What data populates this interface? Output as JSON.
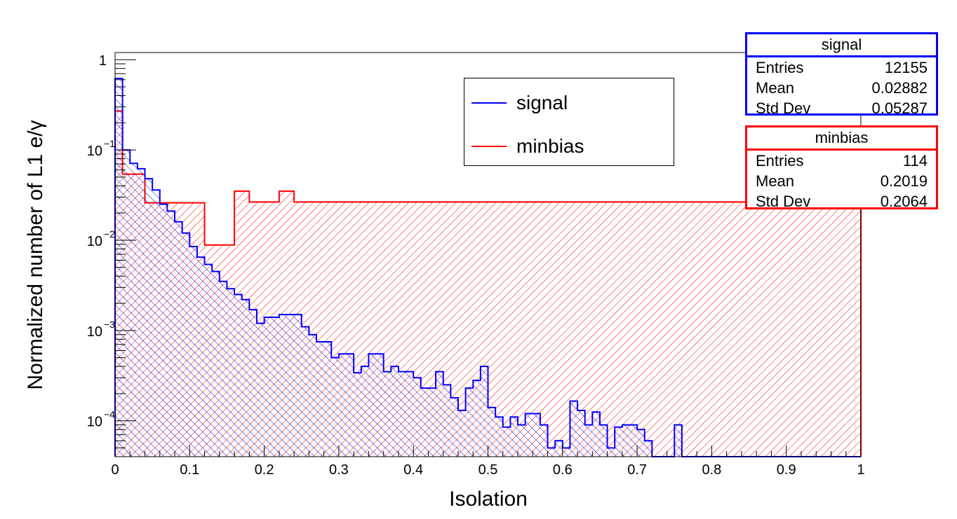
{
  "chart_data": {
    "type": "histogram",
    "title": "",
    "xlabel": "Isolation",
    "ylabel": "Normalized number of L1 e/γ",
    "x_range": [
      0,
      1
    ],
    "y_range": [
      4e-05,
      1.2
    ],
    "y_scale": "log",
    "bin_width": 0.01,
    "grid": false,
    "x_ticks": [
      "0",
      "0.1",
      "0.2",
      "0.3",
      "0.4",
      "0.5",
      "0.6",
      "0.7",
      "0.8",
      "0.9",
      "1"
    ],
    "y_ticks": [
      {
        "base": "10",
        "exp": "−4",
        "value": 0.0001
      },
      {
        "base": "10",
        "exp": "−3",
        "value": 0.001
      },
      {
        "base": "10",
        "exp": "−2",
        "value": 0.01
      },
      {
        "base": "10",
        "exp": "−1",
        "value": 0.1
      },
      {
        "base": "1",
        "exp": "",
        "value": 1
      }
    ],
    "legend_position": "top-right",
    "series": [
      {
        "name": "signal",
        "color": "#0000ff",
        "hatch": "backslash",
        "bins": [
          [
            0,
            0.62
          ],
          [
            0.01,
            0.1
          ],
          [
            0.02,
            0.071
          ],
          [
            0.03,
            0.062
          ],
          [
            0.04,
            0.048
          ],
          [
            0.05,
            0.036
          ],
          [
            0.06,
            0.025
          ],
          [
            0.07,
            0.021
          ],
          [
            0.08,
            0.016
          ],
          [
            0.09,
            0.012
          ],
          [
            0.1,
            0.0085
          ],
          [
            0.11,
            0.0065
          ],
          [
            0.12,
            0.0054
          ],
          [
            0.13,
            0.0045
          ],
          [
            0.14,
            0.0035
          ],
          [
            0.15,
            0.0029
          ],
          [
            0.16,
            0.0025
          ],
          [
            0.17,
            0.0022
          ],
          [
            0.18,
            0.0017
          ],
          [
            0.19,
            0.0012
          ],
          [
            0.2,
            0.0014
          ],
          [
            0.21,
            0.0014
          ],
          [
            0.22,
            0.0015
          ],
          [
            0.23,
            0.0015
          ],
          [
            0.24,
            0.0015
          ],
          [
            0.25,
            0.0011
          ],
          [
            0.26,
            0.0009
          ],
          [
            0.27,
            0.00075
          ],
          [
            0.28,
            0.00075
          ],
          [
            0.29,
            0.0005
          ],
          [
            0.3,
            0.00055
          ],
          [
            0.31,
            0.00055
          ],
          [
            0.32,
            0.00034
          ],
          [
            0.33,
            0.0004
          ],
          [
            0.34,
            0.00055
          ],
          [
            0.35,
            0.00055
          ],
          [
            0.36,
            0.00035
          ],
          [
            0.37,
            0.0004
          ],
          [
            0.38,
            0.00035
          ],
          [
            0.39,
            0.00035
          ],
          [
            0.4,
            0.0003
          ],
          [
            0.41,
            0.00023
          ],
          [
            0.42,
            0.00023
          ],
          [
            0.43,
            0.00035
          ],
          [
            0.44,
            0.00025
          ],
          [
            0.45,
            0.00018
          ],
          [
            0.46,
            0.00013
          ],
          [
            0.47,
            0.00023
          ],
          [
            0.48,
            0.00028
          ],
          [
            0.49,
            0.0004
          ],
          [
            0.5,
            0.00014
          ],
          [
            0.51,
            0.00011
          ],
          [
            0.52,
            8.5e-05
          ],
          [
            0.53,
            0.00011
          ],
          [
            0.54,
            9e-05
          ],
          [
            0.55,
            0.00012
          ],
          [
            0.56,
            0.00012
          ],
          [
            0.57,
            9e-05
          ],
          [
            0.58,
            5e-05
          ],
          [
            0.59,
            6e-05
          ],
          [
            0.6,
            5e-05
          ],
          [
            0.61,
            0.000165
          ],
          [
            0.62,
            0.00013
          ],
          [
            0.63,
            9e-05
          ],
          [
            0.64,
            0.000125
          ],
          [
            0.65,
            9e-05
          ],
          [
            0.66,
            5e-05
          ],
          [
            0.67,
            8.5e-05
          ],
          [
            0.68,
            9e-05
          ],
          [
            0.69,
            9e-05
          ],
          [
            0.7,
            8e-05
          ],
          [
            0.71,
            6e-05
          ],
          [
            0.72,
            4e-05
          ],
          [
            0.73,
            4e-05
          ],
          [
            0.74,
            4e-05
          ],
          [
            0.75,
            9e-05
          ],
          [
            0.76,
            4e-05
          ],
          [
            0.77,
            4e-05
          ],
          [
            0.78,
            4e-05
          ],
          [
            0.79,
            4e-05
          ],
          [
            0.8,
            4e-05
          ],
          [
            0.81,
            4e-05
          ],
          [
            0.82,
            4e-05
          ],
          [
            0.83,
            4e-05
          ],
          [
            0.84,
            4e-05
          ],
          [
            0.85,
            4e-05
          ],
          [
            0.86,
            4e-05
          ],
          [
            0.87,
            4e-05
          ],
          [
            0.88,
            4e-05
          ],
          [
            0.89,
            4e-05
          ],
          [
            0.9,
            4e-05
          ],
          [
            0.91,
            4e-05
          ],
          [
            0.92,
            4e-05
          ],
          [
            0.93,
            4e-05
          ],
          [
            0.94,
            4e-05
          ],
          [
            0.95,
            4e-05
          ],
          [
            0.96,
            4e-05
          ],
          [
            0.97,
            4e-05
          ],
          [
            0.98,
            4e-05
          ],
          [
            0.99,
            4e-05
          ]
        ]
      },
      {
        "name": "minbias",
        "color": "#ff0000",
        "hatch": "slash",
        "bins": [
          [
            0,
            0.27
          ],
          [
            0.01,
            0.054
          ],
          [
            0.02,
            0.054
          ],
          [
            0.03,
            0.054
          ],
          [
            0.04,
            0.026
          ],
          [
            0.05,
            0.026
          ],
          [
            0.06,
            0.026
          ],
          [
            0.07,
            0.026
          ],
          [
            0.08,
            0.026
          ],
          [
            0.09,
            0.026
          ],
          [
            0.1,
            0.026
          ],
          [
            0.11,
            0.026
          ],
          [
            0.12,
            0.00885
          ],
          [
            0.13,
            0.00885
          ],
          [
            0.14,
            0.00885
          ],
          [
            0.15,
            0.00885
          ],
          [
            0.16,
            0.035
          ],
          [
            0.17,
            0.035
          ],
          [
            0.18,
            0.0265
          ],
          [
            0.19,
            0.0265
          ],
          [
            0.2,
            0.0265
          ],
          [
            0.21,
            0.0265
          ],
          [
            0.22,
            0.035
          ],
          [
            0.23,
            0.035
          ],
          [
            0.24,
            0.0265
          ],
          [
            0.25,
            0.0265
          ],
          [
            0.26,
            0.0265
          ],
          [
            0.27,
            0.0265
          ],
          [
            0.28,
            0.0265
          ],
          [
            0.29,
            0.0265
          ],
          [
            0.3,
            0.0265
          ],
          [
            0.31,
            0.0265
          ],
          [
            0.32,
            0.0265
          ],
          [
            0.33,
            0.0265
          ],
          [
            0.34,
            0.0265
          ],
          [
            0.35,
            0.0265
          ],
          [
            0.36,
            0.0265
          ],
          [
            0.37,
            0.0265
          ],
          [
            0.38,
            0.0265
          ],
          [
            0.39,
            0.0265
          ],
          [
            0.4,
            0.0265
          ],
          [
            0.41,
            0.0265
          ],
          [
            0.42,
            0.0265
          ],
          [
            0.43,
            0.0265
          ],
          [
            0.44,
            0.0265
          ],
          [
            0.45,
            0.0265
          ],
          [
            0.46,
            0.0265
          ],
          [
            0.47,
            0.0265
          ],
          [
            0.48,
            0.0265
          ],
          [
            0.49,
            0.0265
          ],
          [
            0.5,
            0.0265
          ],
          [
            0.51,
            0.0265
          ],
          [
            0.52,
            0.0265
          ],
          [
            0.53,
            0.0265
          ],
          [
            0.54,
            0.0265
          ],
          [
            0.55,
            0.0265
          ],
          [
            0.56,
            0.0265
          ],
          [
            0.57,
            0.0265
          ],
          [
            0.58,
            0.0265
          ],
          [
            0.59,
            0.0265
          ],
          [
            0.6,
            0.0265
          ],
          [
            0.61,
            0.0265
          ],
          [
            0.62,
            0.0265
          ],
          [
            0.63,
            0.0265
          ],
          [
            0.64,
            0.0265
          ],
          [
            0.65,
            0.0265
          ],
          [
            0.66,
            0.0265
          ],
          [
            0.67,
            0.0265
          ],
          [
            0.68,
            0.0265
          ],
          [
            0.69,
            0.0265
          ],
          [
            0.7,
            0.0265
          ],
          [
            0.71,
            0.0265
          ],
          [
            0.72,
            0.0265
          ],
          [
            0.73,
            0.0265
          ],
          [
            0.74,
            0.0265
          ],
          [
            0.75,
            0.0265
          ],
          [
            0.76,
            0.0265
          ],
          [
            0.77,
            0.0265
          ],
          [
            0.78,
            0.0265
          ],
          [
            0.79,
            0.0265
          ],
          [
            0.8,
            0.0265
          ],
          [
            0.81,
            0.0265
          ],
          [
            0.82,
            0.0265
          ],
          [
            0.83,
            0.0265
          ],
          [
            0.84,
            0.0265
          ],
          [
            0.85,
            0.0265
          ],
          [
            0.86,
            0.0265
          ],
          [
            0.87,
            0.0265
          ],
          [
            0.88,
            0.0265
          ],
          [
            0.89,
            0.0265
          ],
          [
            0.9,
            0.0265
          ],
          [
            0.91,
            0.0265
          ],
          [
            0.92,
            0.0265
          ],
          [
            0.93,
            0.0265
          ],
          [
            0.94,
            0.0265
          ],
          [
            0.95,
            0.0265
          ],
          [
            0.96,
            0.0265
          ],
          [
            0.97,
            0.0265
          ],
          [
            0.98,
            0.0265
          ],
          [
            0.99,
            0.0265
          ]
        ]
      }
    ],
    "stats": [
      {
        "name": "signal",
        "color": "#0000ff",
        "rows": [
          [
            "Entries",
            "12155"
          ],
          [
            "Mean",
            "0.02882"
          ],
          [
            "Std Dev",
            "0.05287"
          ]
        ]
      },
      {
        "name": "minbias",
        "color": "#ff0000",
        "rows": [
          [
            "Entries",
            "114"
          ],
          [
            "Mean",
            "0.2019"
          ],
          [
            "Std Dev",
            "0.2064"
          ]
        ]
      }
    ]
  },
  "stat_signal": {
    "title": "signal",
    "r1l": "Entries",
    "r1v": "12155",
    "r2l": "Mean",
    "r2v": "0.02882",
    "r3l": "Std Dev",
    "r3v": "0.05287"
  },
  "stat_minbias": {
    "title": "minbias",
    "r1l": "Entries",
    "r1v": "114",
    "r2l": "Mean",
    "r2v": "0.2019",
    "r3l": "Std Dev",
    "r3v": "0.2064"
  },
  "legend": {
    "signal": "signal",
    "minbias": "minbias"
  }
}
